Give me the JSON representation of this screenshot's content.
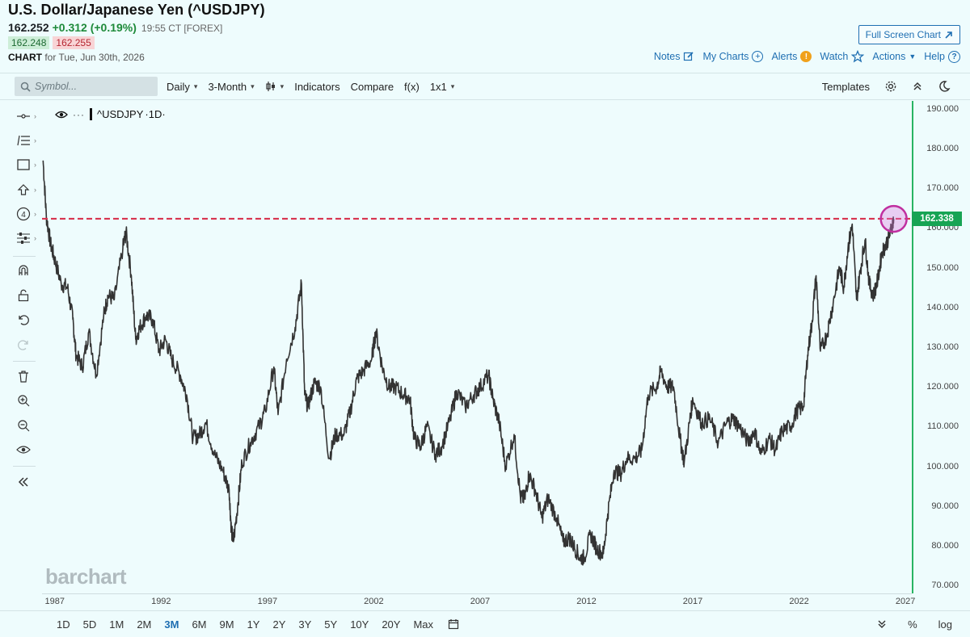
{
  "header": {
    "title": "U.S. Dollar/Japanese Yen (^USDJPY)",
    "last": "162.252",
    "change": "+0.312 (+0.19%)",
    "time_meta": "19:55 CT [FOREX]",
    "bid": "162.248",
    "ask": "162.255",
    "chart_label": "CHART",
    "chart_for": "for Tue, Jun 30th, 2026"
  },
  "fullscreen_label": "Full Screen Chart",
  "nav": {
    "notes": "Notes",
    "my_charts": "My Charts",
    "alerts": "Alerts",
    "alerts_badge": "!",
    "watch": "Watch",
    "actions": "Actions",
    "help": "Help"
  },
  "toolbar": {
    "search_placeholder": "Symbol...",
    "interval": "Daily",
    "range": "3-Month",
    "indicators": "Indicators",
    "compare": "Compare",
    "fx": "f(x)",
    "layout": "1x1",
    "templates": "Templates"
  },
  "legend": {
    "dots": "···",
    "symbol": "^USDJPY",
    "interval": "·1D·"
  },
  "watermark": "barchart",
  "price_tag": "162.338",
  "colors": {
    "background": "#eefcfd",
    "price_line": "#333333",
    "ref_line": "#d8344f",
    "axis_green": "#29b463",
    "highlight": "#c02fa0",
    "link": "#1f6fb2"
  },
  "bottom": {
    "periods": [
      "1D",
      "5D",
      "1M",
      "2M",
      "3M",
      "6M",
      "9M",
      "1Y",
      "2Y",
      "3Y",
      "5Y",
      "10Y",
      "20Y",
      "Max"
    ],
    "active": "3M",
    "percent": "%",
    "log": "log"
  },
  "icons": [
    "search-icon",
    "candlestick-icon",
    "gear-icon",
    "collapse-icon",
    "moon-icon",
    "calendar-icon",
    "eye-icon",
    "magnet-icon",
    "lock-icon",
    "undo-icon",
    "redo-icon",
    "trash-icon",
    "zoom-in-icon",
    "zoom-out-icon",
    "double-chevron-left-icon",
    "double-chevron-down-icon"
  ],
  "chart_data": {
    "type": "line",
    "title": "",
    "xlabel": "",
    "ylabel": "",
    "ylim": [
      68,
      192
    ],
    "xlim": [
      1986.4,
      2027.3
    ],
    "y_ticks": [
      "190.000",
      "180.000",
      "170.000",
      "160.000",
      "150.000",
      "140.000",
      "130.000",
      "120.000",
      "110.000",
      "100.000",
      "90.000",
      "80.000",
      "70.000"
    ],
    "y_tick_values": [
      190,
      180,
      170,
      160,
      150,
      140,
      130,
      120,
      110,
      100,
      90,
      80,
      70
    ],
    "x_ticks": [
      "1987",
      "1992",
      "1997",
      "2002",
      "2007",
      "2012",
      "2017",
      "2022",
      "2027"
    ],
    "x_tick_values": [
      1987,
      1992,
      1997,
      2002,
      2007,
      2012,
      2017,
      2022,
      2027
    ],
    "reference_line": 162.338,
    "highlight_point": [
      2026.45,
      162.3
    ],
    "series": [
      {
        "values": [
          [
            1986.45,
            177
          ],
          [
            1986.6,
            163
          ],
          [
            1986.8,
            156
          ],
          [
            1987.0,
            152
          ],
          [
            1987.3,
            146
          ],
          [
            1987.6,
            145
          ],
          [
            1987.85,
            137
          ],
          [
            1988.0,
            128
          ],
          [
            1988.3,
            125
          ],
          [
            1988.6,
            134
          ],
          [
            1988.95,
            123
          ],
          [
            1989.3,
            138
          ],
          [
            1989.5,
            143
          ],
          [
            1989.8,
            142
          ],
          [
            1990.2,
            155
          ],
          [
            1990.35,
            159
          ],
          [
            1990.6,
            148
          ],
          [
            1990.8,
            132
          ],
          [
            1991.0,
            135
          ],
          [
            1991.3,
            138
          ],
          [
            1991.6,
            137
          ],
          [
            1991.9,
            129
          ],
          [
            1992.2,
            132
          ],
          [
            1992.5,
            127
          ],
          [
            1992.9,
            123
          ],
          [
            1993.2,
            118
          ],
          [
            1993.5,
            107
          ],
          [
            1993.8,
            108
          ],
          [
            1994.1,
            111
          ],
          [
            1994.5,
            103
          ],
          [
            1994.9,
            99
          ],
          [
            1995.2,
            94
          ],
          [
            1995.3,
            84
          ],
          [
            1995.4,
            81
          ],
          [
            1995.6,
            90
          ],
          [
            1995.8,
            101
          ],
          [
            1996.2,
            106
          ],
          [
            1996.6,
            110
          ],
          [
            1996.9,
            114
          ],
          [
            1997.3,
            125
          ],
          [
            1997.5,
            113
          ],
          [
            1997.9,
            127
          ],
          [
            1998.3,
            135
          ],
          [
            1998.6,
            146
          ],
          [
            1998.75,
            118
          ],
          [
            1998.9,
            115
          ],
          [
            1999.2,
            121
          ],
          [
            1999.5,
            120
          ],
          [
            1999.9,
            102
          ],
          [
            2000.2,
            108
          ],
          [
            2000.6,
            108
          ],
          [
            2000.9,
            114
          ],
          [
            2001.2,
            122
          ],
          [
            2001.5,
            124
          ],
          [
            2001.9,
            127
          ],
          [
            2002.1,
            134
          ],
          [
            2002.4,
            125
          ],
          [
            2002.7,
            120
          ],
          [
            2003.0,
            120
          ],
          [
            2003.4,
            118
          ],
          [
            2003.7,
            117
          ],
          [
            2003.9,
            107
          ],
          [
            2004.2,
            105
          ],
          [
            2004.5,
            110
          ],
          [
            2004.9,
            103
          ],
          [
            2005.2,
            105
          ],
          [
            2005.6,
            112
          ],
          [
            2005.9,
            119
          ],
          [
            2006.3,
            115
          ],
          [
            2006.7,
            118
          ],
          [
            2007.0,
            120
          ],
          [
            2007.4,
            123
          ],
          [
            2007.6,
            117
          ],
          [
            2007.9,
            111
          ],
          [
            2008.2,
            100
          ],
          [
            2008.6,
            108
          ],
          [
            2008.9,
            92
          ],
          [
            2009.1,
            92
          ],
          [
            2009.3,
            98
          ],
          [
            2009.6,
            94
          ],
          [
            2009.9,
            87
          ],
          [
            2010.2,
            92
          ],
          [
            2010.6,
            87
          ],
          [
            2010.9,
            81
          ],
          [
            2011.2,
            82
          ],
          [
            2011.4,
            80
          ],
          [
            2011.7,
            77
          ],
          [
            2011.9,
            77
          ],
          [
            2012.2,
            83
          ],
          [
            2012.5,
            79
          ],
          [
            2012.8,
            78
          ],
          [
            2013.0,
            88
          ],
          [
            2013.3,
            99
          ],
          [
            2013.6,
            98
          ],
          [
            2013.9,
            102
          ],
          [
            2014.3,
            102
          ],
          [
            2014.6,
            104
          ],
          [
            2014.9,
            118
          ],
          [
            2015.3,
            120
          ],
          [
            2015.5,
            124
          ],
          [
            2015.8,
            120
          ],
          [
            2016.1,
            120
          ],
          [
            2016.4,
            107
          ],
          [
            2016.6,
            101
          ],
          [
            2016.9,
            113
          ],
          [
            2017.0,
            117
          ],
          [
            2017.4,
            111
          ],
          [
            2017.8,
            112
          ],
          [
            2018.2,
            106
          ],
          [
            2018.6,
            111
          ],
          [
            2018.9,
            112
          ],
          [
            2019.2,
            110
          ],
          [
            2019.6,
            106
          ],
          [
            2019.9,
            109
          ],
          [
            2020.2,
            103
          ],
          [
            2020.6,
            107
          ],
          [
            2020.9,
            104
          ],
          [
            2021.2,
            109
          ],
          [
            2021.6,
            110
          ],
          [
            2021.9,
            114
          ],
          [
            2022.2,
            115
          ],
          [
            2022.4,
            128
          ],
          [
            2022.6,
            136
          ],
          [
            2022.8,
            148
          ],
          [
            2023.0,
            129
          ],
          [
            2023.3,
            133
          ],
          [
            2023.6,
            141
          ],
          [
            2023.9,
            150
          ],
          [
            2024.1,
            145
          ],
          [
            2024.3,
            155
          ],
          [
            2024.5,
            161
          ],
          [
            2024.7,
            142
          ],
          [
            2024.9,
            150
          ],
          [
            2025.1,
            157
          ],
          [
            2025.3,
            146
          ],
          [
            2025.5,
            143
          ],
          [
            2025.7,
            147
          ],
          [
            2025.9,
            154
          ],
          [
            2026.1,
            156
          ],
          [
            2026.3,
            159
          ],
          [
            2026.45,
            162.3
          ]
        ]
      }
    ]
  }
}
